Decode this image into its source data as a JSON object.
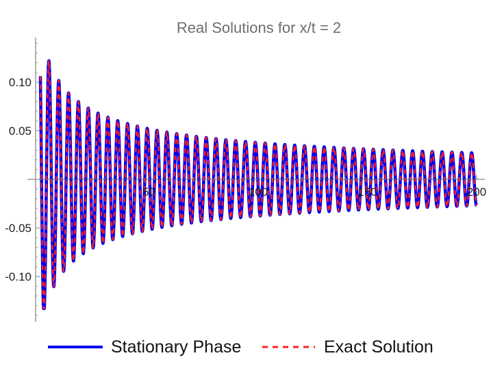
{
  "chart_data": {
    "type": "line",
    "title": "Real Solutions for x/t = 2",
    "xlabel": "",
    "ylabel": "",
    "xlim": [
      0,
      200
    ],
    "ylim": [
      -0.145,
      0.145
    ],
    "x_ticks": [
      50,
      100,
      150,
      200
    ],
    "y_ticks": [
      0.1,
      0.05,
      -0.05,
      -0.1
    ],
    "x_tick_labels": [
      "50",
      "100",
      "150",
      "200"
    ],
    "y_tick_labels": [
      "0.10",
      "0.05",
      "-0.05",
      "-0.10"
    ],
    "grid": false,
    "legend_position": "bottom",
    "series": [
      {
        "name": "Stationary Phase",
        "style": "solid",
        "color": "#0000ee",
        "x_range": [
          0,
          200
        ],
        "oscillation_period": 4.5,
        "amplitude_scale": 0.39
      },
      {
        "name": "Exact Solution",
        "style": "dashed",
        "color": "#ff2020",
        "x_range": [
          0,
          200
        ],
        "oscillation_period": 4.5,
        "amplitude_scale": 0.39
      }
    ]
  }
}
